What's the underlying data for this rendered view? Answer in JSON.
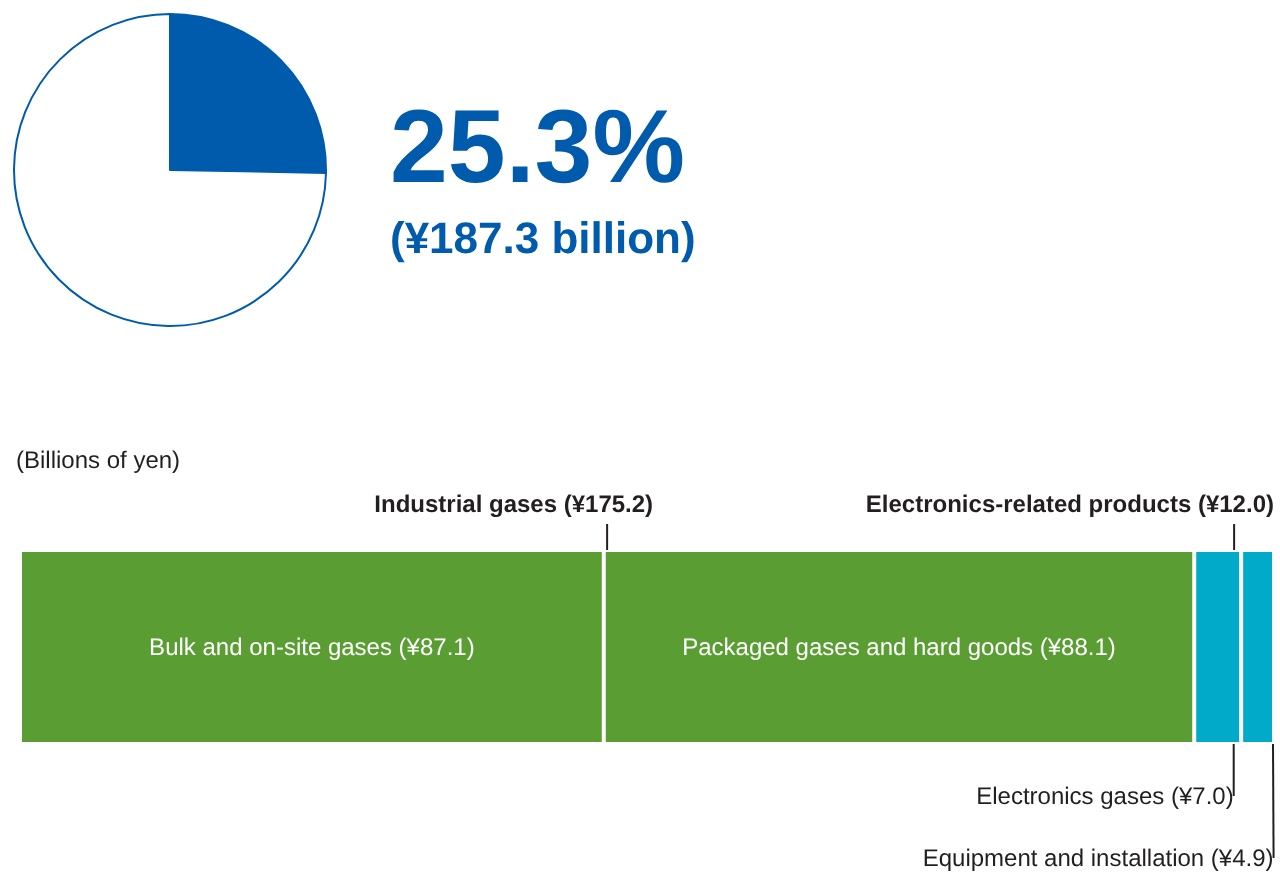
{
  "chart_data": [
    {
      "type": "pie",
      "categories": [
        null,
        null
      ],
      "values": [
        25.3,
        74.7
      ],
      "colors": [
        "#005bac",
        "#ffffff"
      ],
      "annotations": [
        "25.3%",
        "(¥187.3 billion)"
      ]
    },
    {
      "type": "bar",
      "orientation": "horizontal",
      "stacked": true,
      "tick_labels": false,
      "categories": [
        null
      ],
      "xlabel": "(Billions of yen)",
      "series": [
        {
          "name": "Bulk and on-site gases",
          "color": "#5a9e33",
          "values": [
            87.1
          ],
          "value_labels": [
            "(¥87.1)"
          ]
        },
        {
          "name": "Packaged gases and hard goods",
          "color": "#5a9e33",
          "values": [
            88.1
          ],
          "value_labels": [
            "(¥88.1)"
          ]
        },
        {
          "name": "Electronics gases",
          "color": "#00aac8",
          "values": [
            7.0
          ],
          "value_labels": [
            "(¥7.0)"
          ]
        },
        {
          "name": "Equipment and installation",
          "color": "#00aac8",
          "values": [
            4.9
          ],
          "value_labels": [
            "(¥4.9)"
          ]
        }
      ],
      "annotations": [
        "Industrial gases (¥175.2)",
        "Electronics-related products (¥12.0)"
      ]
    }
  ]
}
